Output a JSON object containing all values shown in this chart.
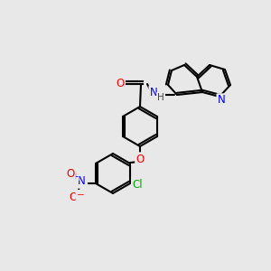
{
  "bg_color": "#e8e8e8",
  "bond_color": "#000000",
  "bond_lw": 1.5,
  "atom_colors": {
    "O": "#ff0000",
    "N": "#0000ff",
    "Cl": "#00aa00",
    "N_amide": "#0000ff",
    "N_py": "#0000ff"
  },
  "font_size": 7.5
}
